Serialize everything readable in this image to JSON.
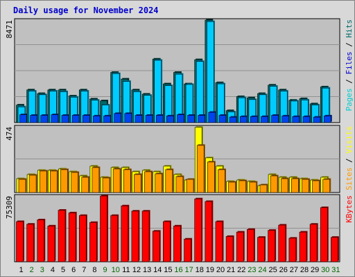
{
  "chart_data": {
    "type": "bar",
    "title": "Daily usage for November 2024",
    "categories": [
      "1",
      "2",
      "3",
      "4",
      "5",
      "6",
      "7",
      "8",
      "9",
      "10",
      "11",
      "12",
      "13",
      "14",
      "15",
      "16",
      "17",
      "18",
      "19",
      "20",
      "21",
      "22",
      "23",
      "24",
      "25",
      "26",
      "27",
      "28",
      "29",
      "30",
      "31"
    ],
    "weekend_days": [
      "2",
      "3",
      "9",
      "10",
      "16",
      "17",
      "23",
      "24",
      "30",
      "31"
    ],
    "colors": {
      "hits": "#006666",
      "files": "#00ccff",
      "visits": "#ffff00",
      "sites": "#ff9900",
      "kbytes": "#ff0000",
      "panel_bg": "#c0c0c0",
      "frame_bg": "#d8d8d8",
      "title": "#0000cc",
      "weekday_label": "#000000",
      "weekend_label": "#006600"
    },
    "panels": [
      {
        "id": "hits-files",
        "max_label": "8471",
        "ymax": 8471,
        "legend": [
          {
            "text": "Pages",
            "color": "#00cccc"
          },
          {
            "text": " / ",
            "color": "#000000"
          },
          {
            "text": "Files",
            "color": "#0000cc"
          },
          {
            "text": " / ",
            "color": "#000000"
          },
          {
            "text": "Hits",
            "color": "#006666"
          }
        ],
        "series": [
          {
            "name": "Hits",
            "color": "#006666",
            "values": [
              1450,
              2700,
              2400,
              2700,
              2700,
              2200,
              2700,
              1950,
              1800,
              4150,
              3600,
              2700,
              2350,
              5250,
              3200,
              4150,
              3200,
              5200,
              8470,
              3300,
              990,
              2150,
              2050,
              2400,
              3100,
              2700,
              1850,
              1980,
              1550,
              2950,
              0
            ]
          },
          {
            "name": "Files",
            "color": "#00ccff",
            "values": [
              1300,
              2600,
              2300,
              2600,
              2550,
              2100,
              2600,
              1850,
              1450,
              4050,
              3400,
              2550,
              2250,
              5150,
              3050,
              4000,
              3150,
              5050,
              8350,
              3200,
              880,
              2050,
              1900,
              2300,
              3000,
              2600,
              1780,
              1870,
              1450,
              2850,
              0
            ]
          },
          {
            "name": "Pages",
            "color": "#0044ee",
            "values": [
              650,
              600,
              600,
              650,
              600,
              600,
              600,
              550,
              550,
              750,
              750,
              600,
              600,
              600,
              550,
              650,
              600,
              600,
              850,
              600,
              450,
              500,
              500,
              500,
              600,
              550,
              500,
              500,
              450,
              550,
              0
            ]
          }
        ]
      },
      {
        "id": "visits-sites",
        "max_label": "474",
        "ymax": 474,
        "legend": [
          {
            "text": "Sites",
            "color": "#ff9900"
          },
          {
            "text": " / ",
            "color": "#000000"
          },
          {
            "text": "Visits",
            "color": "#ffff00"
          }
        ],
        "series": [
          {
            "name": "Visits",
            "color": "#ffff00",
            "values": [
              100,
              130,
              160,
              160,
              170,
              150,
              120,
              190,
              110,
              180,
              180,
              150,
              160,
              150,
              190,
              130,
              90,
              470,
              250,
              190,
              80,
              90,
              80,
              50,
              130,
              110,
              110,
              100,
              90,
              110,
              0
            ]
          },
          {
            "name": "Sites",
            "color": "#ff9900",
            "values": [
              95,
              125,
              155,
              155,
              165,
              145,
              110,
              180,
              105,
              170,
              165,
              130,
              150,
              135,
              165,
              115,
              95,
              340,
              220,
              165,
              75,
              85,
              75,
              55,
              120,
              100,
              100,
              95,
              85,
              95,
              0
            ]
          }
        ]
      },
      {
        "id": "kbytes",
        "max_label": "75309",
        "ymax": 75309,
        "legend": [
          {
            "text": "KBytes",
            "color": "#ff0000"
          }
        ],
        "series": [
          {
            "name": "KBytes",
            "color": "#ff0000",
            "values": [
              46000,
              43000,
              48000,
              41000,
              59000,
              56000,
              53000,
              45000,
              75300,
              53000,
              64000,
              58000,
              58000,
              35000,
              46000,
              41000,
              26000,
              72000,
              69000,
              46000,
              29000,
              34000,
              37000,
              28000,
              36000,
              42000,
              27000,
              34000,
              43000,
              62000,
              28000
            ]
          }
        ]
      }
    ]
  }
}
